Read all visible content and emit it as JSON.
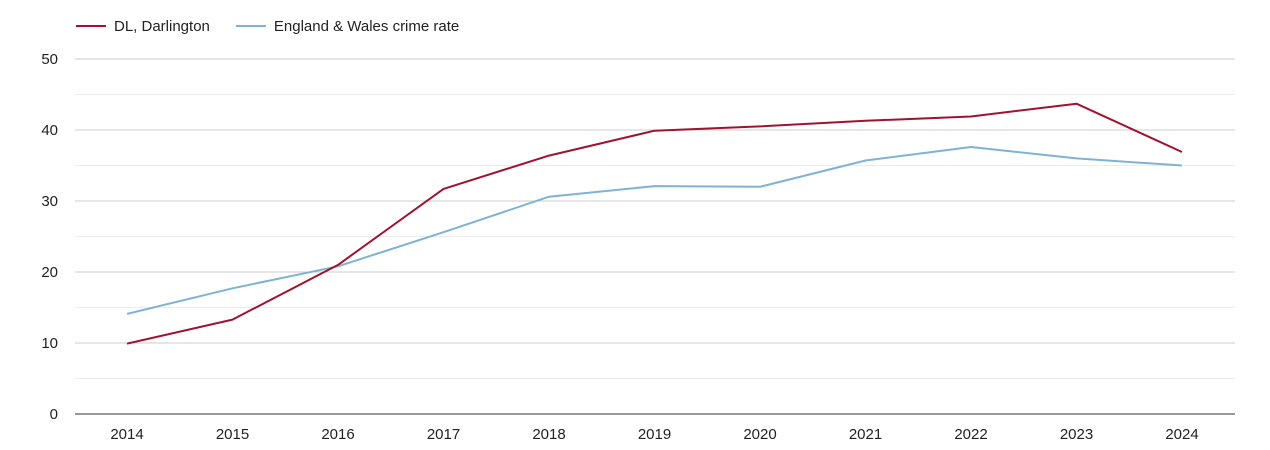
{
  "chart_data": {
    "type": "line",
    "title": "",
    "xlabel": "",
    "ylabel": "",
    "categories": [
      "2014",
      "2015",
      "2016",
      "2017",
      "2018",
      "2019",
      "2020",
      "2021",
      "2022",
      "2023",
      "2024"
    ],
    "ylim": [
      0,
      50
    ],
    "yticks": [
      "0",
      "10",
      "20",
      "30",
      "40",
      "50"
    ],
    "grid": true,
    "legend_position": "top-left",
    "series": [
      {
        "name": "DL, Darlington",
        "color": "#a0122f",
        "values": [
          9.9,
          13.3,
          21.0,
          31.7,
          36.4,
          39.9,
          40.5,
          41.3,
          41.9,
          43.7,
          36.9
        ]
      },
      {
        "name": "England & Wales crime rate",
        "color": "#7fb2d4",
        "values": [
          14.1,
          17.7,
          20.8,
          25.6,
          30.6,
          32.1,
          32.0,
          35.7,
          37.6,
          36.0,
          35.0
        ]
      }
    ]
  }
}
